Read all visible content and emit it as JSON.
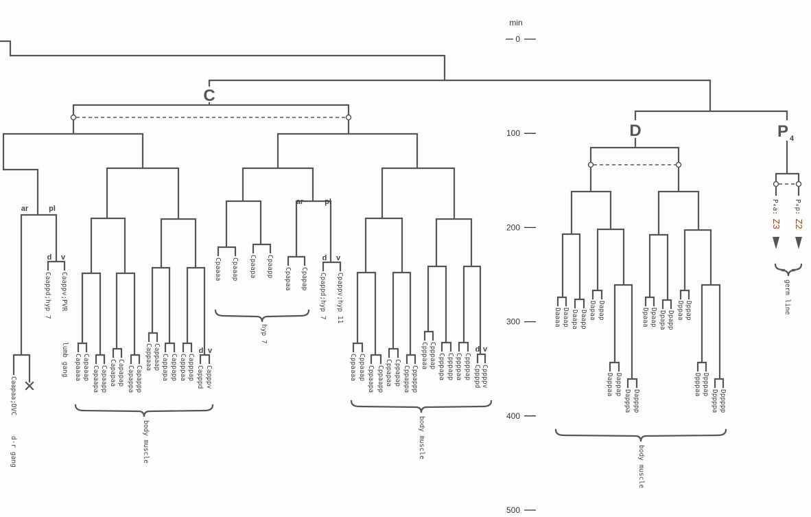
{
  "axis": {
    "unit": "min",
    "ticks": [
      "0",
      "100",
      "200",
      "300",
      "400",
      "500"
    ]
  },
  "founders": {
    "C": "C",
    "D": "D",
    "P4": "P",
    "P4_sub": "4"
  },
  "branch_labels": {
    "ar": "ar",
    "pl": "pl",
    "d": "d",
    "v": "v"
  },
  "leaves": [
    "Caapaa;DVC",
    "Caappd;hyp 7",
    "Caappv;PVR",
    "Capaaaa",
    "Capaaap",
    "Capaapa",
    "Capaapp",
    "Capapaa",
    "Capapap",
    "Capappa",
    "Capappp",
    "Cappaaa",
    "Cappaap",
    "Cappapa",
    "Cappapp",
    "Capppaa",
    "Capppap",
    "Capppd",
    "Capppv",
    "Cpaaaa",
    "Cpaaap",
    "Cpaapa",
    "Cpaapp",
    "Cpapaa",
    "Cpapap",
    "Cpappd;hyp 7",
    "Cpappv;hyp 11",
    "Cppaaaa",
    "Cppaaap",
    "Cppaapa",
    "Cppaapp",
    "Cppapaa",
    "Cppapap",
    "Cppappa",
    "Cppappp",
    "Cpppaaa",
    "Cpppaap",
    "Cpppapa",
    "Cpppapp",
    "Cppppaa",
    "Cppppap",
    "Cppppd",
    "Cppppv",
    "Daaaa",
    "Daaap",
    "Daapa",
    "Daapp",
    "Dapaa",
    "Dapap",
    "Dappaa",
    "Dappap",
    "Dapppa",
    "Dapppp",
    "Dpaaa",
    "Dpaap",
    "Dpapa",
    "Dpapp",
    "Dppaa",
    "Dppap",
    "Dpppaa",
    "Dpppap",
    "Dppppa",
    "Dppppp"
  ],
  "germ_cells": [
    {
      "name": "P₄a: ",
      "fate": "Z3"
    },
    {
      "name": "P₄p: ",
      "fate": "Z2"
    }
  ],
  "fates": {
    "dr_gang": "d-r gang",
    "lumb_gang": "lumb gang",
    "hyp7": "hyp 7",
    "body_muscle_1": "body muscle",
    "body_muscle_2": "body muscle",
    "body_muscle_3": "body muscle",
    "germ_line": "germ line"
  },
  "colors": {
    "line": "#555555",
    "germ_fate": "#b83a10"
  }
}
